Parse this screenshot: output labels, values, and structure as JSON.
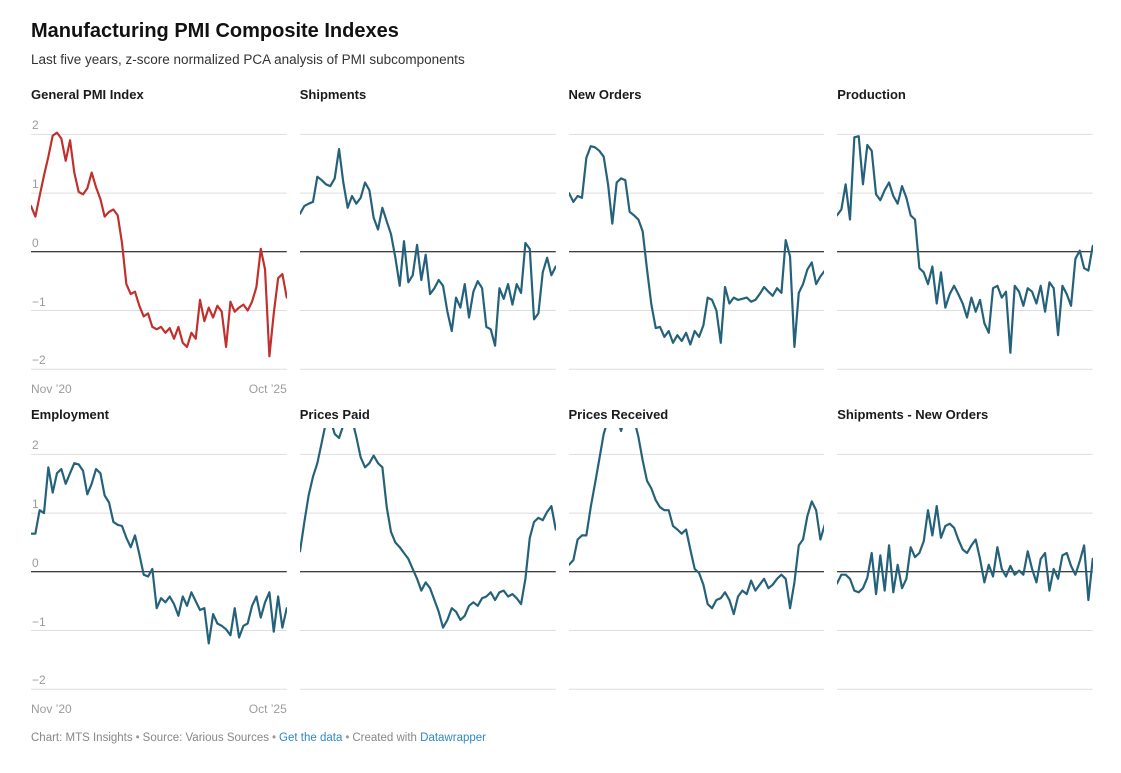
{
  "header": {
    "title": "Manufacturing PMI Composite Indexes",
    "subtitle": "Last five years, z-score normalized PCA analysis of PMI subcomponents"
  },
  "axis": {
    "y_ticks": [
      2,
      1,
      0,
      -1,
      -2
    ],
    "y_tick_labels": [
      "2",
      "1",
      "0",
      "−1",
      "−2"
    ],
    "x_start_label": "Nov ’20",
    "x_end_label": "Oct ’25"
  },
  "colors": {
    "highlight_line": "#c0302d",
    "base_line": "#24617a",
    "grid_line": "#dedede",
    "zero_line": "#000000",
    "tick_text": "#9c9c9c",
    "link": "#2e87c8"
  },
  "footer": {
    "chart_credit": "Chart: MTS Insights",
    "separator": "•",
    "source": "Source: Various Sources",
    "get_data_label": "Get the data",
    "created_with": "Created with",
    "tool_name": "Datawrapper"
  },
  "chart_data": [
    {
      "type": "line",
      "title": "General PMI Index",
      "color": "#c0302d",
      "x_range": [
        "Nov 2020",
        "Oct 2025"
      ],
      "frequency": "monthly",
      "ylim": [
        -2,
        2
      ],
      "grid": true,
      "values": [
        0.78,
        0.6,
        0.95,
        1.3,
        1.62,
        1.98,
        2.03,
        1.93,
        1.55,
        1.9,
        1.35,
        1.02,
        0.98,
        1.08,
        1.35,
        1.1,
        0.9,
        0.6,
        0.68,
        0.72,
        0.62,
        0.15,
        -0.55,
        -0.72,
        -0.68,
        -0.92,
        -1.1,
        -1.05,
        -1.28,
        -1.32,
        -1.28,
        -1.38,
        -1.3,
        -1.48,
        -1.28,
        -1.55,
        -1.62,
        -1.38,
        -1.48,
        -0.82,
        -1.18,
        -0.95,
        -1.12,
        -0.92,
        -1.02,
        -1.62,
        -0.85,
        -1.02,
        -0.95,
        -0.9,
        -1.0,
        -0.85,
        -0.6,
        0.05,
        -0.3,
        -1.78,
        -1.05,
        -0.45,
        -0.38,
        -0.78
      ]
    },
    {
      "type": "line",
      "title": "Shipments",
      "color": "#24617a",
      "x_range": [
        "Nov 2020",
        "Oct 2025"
      ],
      "frequency": "monthly",
      "ylim": [
        -2,
        2
      ],
      "grid": true,
      "values": [
        0.65,
        0.78,
        0.82,
        0.85,
        1.28,
        1.22,
        1.15,
        1.12,
        1.25,
        1.75,
        1.18,
        0.75,
        0.95,
        0.82,
        0.92,
        1.18,
        1.05,
        0.58,
        0.38,
        0.75,
        0.52,
        0.3,
        -0.1,
        -0.58,
        0.18,
        -0.52,
        -0.4,
        0.12,
        -0.48,
        -0.05,
        -0.72,
        -0.62,
        -0.48,
        -0.58,
        -1.02,
        -1.35,
        -0.78,
        -0.95,
        -0.55,
        -1.12,
        -0.68,
        -0.5,
        -0.62,
        -1.28,
        -1.32,
        -1.6,
        -0.62,
        -0.8,
        -0.55,
        -0.9,
        -0.55,
        -0.7,
        0.15,
        0.05,
        -1.15,
        -1.05,
        -0.35,
        -0.1,
        -0.4,
        -0.25
      ]
    },
    {
      "type": "line",
      "title": "New Orders",
      "color": "#24617a",
      "x_range": [
        "Nov 2020",
        "Oct 2025"
      ],
      "frequency": "monthly",
      "ylim": [
        -2,
        2
      ],
      "grid": true,
      "values": [
        1.0,
        0.85,
        0.95,
        0.92,
        1.6,
        1.8,
        1.78,
        1.72,
        1.62,
        1.15,
        0.48,
        1.18,
        1.25,
        1.22,
        0.68,
        0.62,
        0.55,
        0.35,
        -0.3,
        -0.9,
        -1.3,
        -1.28,
        -1.45,
        -1.35,
        -1.55,
        -1.42,
        -1.52,
        -1.38,
        -1.58,
        -1.35,
        -1.45,
        -1.25,
        -0.78,
        -0.82,
        -1.0,
        -1.55,
        -0.6,
        -0.88,
        -0.78,
        -0.82,
        -0.8,
        -0.78,
        -0.85,
        -0.82,
        -0.72,
        -0.6,
        -0.68,
        -0.75,
        -0.62,
        -0.7,
        0.2,
        -0.08,
        -1.62,
        -0.7,
        -0.55,
        -0.3,
        -0.18,
        -0.55,
        -0.42,
        -0.32
      ]
    },
    {
      "type": "line",
      "title": "Production",
      "color": "#24617a",
      "x_range": [
        "Nov 2020",
        "Oct 2025"
      ],
      "frequency": "monthly",
      "ylim": [
        -2,
        2
      ],
      "grid": true,
      "values": [
        0.62,
        0.72,
        1.15,
        0.55,
        1.95,
        1.97,
        1.15,
        1.82,
        1.72,
        0.98,
        0.88,
        1.05,
        1.18,
        0.95,
        0.82,
        1.12,
        0.92,
        0.62,
        0.55,
        -0.28,
        -0.35,
        -0.55,
        -0.25,
        -0.88,
        -0.35,
        -0.95,
        -0.72,
        -0.58,
        -0.72,
        -0.88,
        -1.12,
        -0.78,
        -1.02,
        -0.82,
        -1.22,
        -1.38,
        -0.62,
        -0.58,
        -0.78,
        -0.68,
        -1.72,
        -0.58,
        -0.68,
        -0.92,
        -0.62,
        -0.68,
        -0.88,
        -0.58,
        -1.02,
        -0.52,
        -0.62,
        -1.42,
        -0.58,
        -0.72,
        -0.92,
        -0.12,
        0.02,
        -0.28,
        -0.32,
        0.1
      ]
    },
    {
      "type": "line",
      "title": "Employment",
      "color": "#24617a",
      "x_range": [
        "Nov 2020",
        "Oct 2025"
      ],
      "frequency": "monthly",
      "ylim": [
        -2,
        2
      ],
      "grid": true,
      "values": [
        0.65,
        0.65,
        1.05,
        1.0,
        1.78,
        1.35,
        1.68,
        1.75,
        1.5,
        1.68,
        1.85,
        1.83,
        1.72,
        1.32,
        1.5,
        1.75,
        1.68,
        1.3,
        1.18,
        0.85,
        0.8,
        0.78,
        0.58,
        0.42,
        0.62,
        0.3,
        -0.05,
        -0.08,
        0.05,
        -0.62,
        -0.45,
        -0.52,
        -0.42,
        -0.55,
        -0.75,
        -0.42,
        -0.58,
        -0.35,
        -0.5,
        -0.65,
        -0.62,
        -1.22,
        -0.72,
        -0.88,
        -0.92,
        -0.98,
        -1.08,
        -0.62,
        -1.12,
        -0.92,
        -0.88,
        -0.58,
        -0.42,
        -0.78,
        -0.52,
        -0.35,
        -1.02,
        -0.42,
        -0.95,
        -0.62
      ]
    },
    {
      "type": "line",
      "title": "Prices Paid",
      "color": "#24617a",
      "x_range": [
        "Nov 2020",
        "Oct 2025"
      ],
      "frequency": "monthly",
      "ylim": [
        -2,
        2
      ],
      "grid": true,
      "values": [
        0.35,
        0.85,
        1.3,
        1.62,
        1.85,
        2.2,
        2.55,
        2.6,
        2.35,
        2.28,
        2.5,
        2.65,
        2.6,
        2.3,
        1.95,
        1.78,
        1.85,
        1.98,
        1.85,
        1.78,
        1.1,
        0.68,
        0.5,
        0.42,
        0.32,
        0.22,
        0.05,
        -0.12,
        -0.32,
        -0.18,
        -0.28,
        -0.48,
        -0.68,
        -0.95,
        -0.82,
        -0.62,
        -0.68,
        -0.82,
        -0.75,
        -0.58,
        -0.52,
        -0.58,
        -0.45,
        -0.42,
        -0.35,
        -0.48,
        -0.35,
        -0.32,
        -0.42,
        -0.38,
        -0.45,
        -0.55,
        -0.12,
        0.58,
        0.85,
        0.92,
        0.88,
        1.02,
        1.12,
        0.72
      ]
    },
    {
      "type": "line",
      "title": "Prices Received",
      "color": "#24617a",
      "x_range": [
        "Nov 2020",
        "Oct 2025"
      ],
      "frequency": "monthly",
      "ylim": [
        -2,
        2
      ],
      "grid": true,
      "values": [
        0.12,
        0.2,
        0.55,
        0.62,
        0.62,
        1.1,
        1.5,
        1.92,
        2.35,
        2.6,
        2.7,
        2.65,
        2.4,
        2.65,
        2.7,
        2.6,
        2.3,
        1.9,
        1.55,
        1.42,
        1.22,
        1.1,
        1.05,
        1.05,
        0.78,
        0.72,
        0.65,
        0.72,
        0.38,
        0.05,
        -0.02,
        -0.22,
        -0.55,
        -0.62,
        -0.48,
        -0.45,
        -0.35,
        -0.48,
        -0.72,
        -0.42,
        -0.32,
        -0.38,
        -0.15,
        -0.32,
        -0.22,
        -0.12,
        -0.28,
        -0.22,
        -0.12,
        -0.05,
        -0.12,
        -0.62,
        -0.18,
        0.45,
        0.55,
        0.95,
        1.2,
        1.05,
        0.55,
        0.8
      ]
    },
    {
      "type": "line",
      "title": "Shipments - New Orders",
      "color": "#24617a",
      "x_range": [
        "Nov 2020",
        "Oct 2025"
      ],
      "frequency": "monthly",
      "ylim": [
        -2,
        2
      ],
      "grid": true,
      "values": [
        -0.2,
        -0.05,
        -0.05,
        -0.12,
        -0.32,
        -0.35,
        -0.28,
        -0.1,
        0.32,
        -0.38,
        0.28,
        -0.32,
        0.45,
        -0.35,
        0.12,
        -0.28,
        -0.12,
        0.42,
        0.25,
        0.32,
        0.52,
        1.05,
        0.62,
        1.12,
        0.58,
        0.78,
        0.82,
        0.75,
        0.55,
        0.38,
        0.32,
        0.45,
        0.55,
        0.22,
        -0.18,
        0.12,
        -0.08,
        0.42,
        0.05,
        -0.08,
        0.1,
        -0.05,
        0.02,
        -0.05,
        0.35,
        0.05,
        -0.18,
        0.22,
        0.32,
        -0.32,
        0.05,
        -0.12,
        0.28,
        0.32,
        0.1,
        -0.05,
        0.18,
        0.45,
        -0.48,
        0.22
      ]
    }
  ]
}
